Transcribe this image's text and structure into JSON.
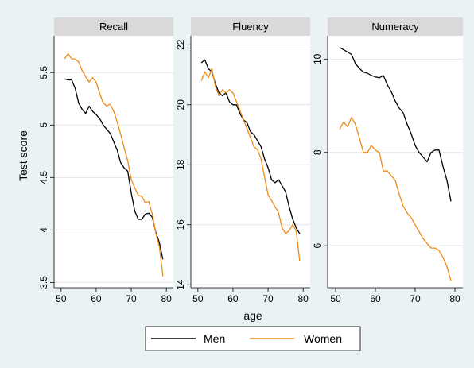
{
  "chart_data": {
    "type": "line",
    "ylabel": "Test score",
    "xlabel": "age",
    "legend": {
      "position": "bottom",
      "entries": [
        "Men",
        "Women"
      ]
    },
    "colors": {
      "Men": "#000000",
      "Women": "#ef8a17",
      "strip": "#d9d9d9",
      "plot_bg": "#ffffff",
      "page_bg": "#eaf2f3",
      "grid": "#e4e4e4"
    },
    "grid": true,
    "x": [
      51,
      52,
      53,
      54,
      55,
      56,
      57,
      58,
      59,
      60,
      61,
      62,
      63,
      64,
      65,
      66,
      67,
      68,
      69,
      70,
      71,
      72,
      73,
      74,
      75,
      76,
      77,
      78,
      79
    ],
    "panels": [
      {
        "title": "Recall",
        "xlim": [
          48,
          82
        ],
        "ylim": [
          3.45,
          5.85
        ],
        "xticks": [
          "50",
          "60",
          "70",
          "80"
        ],
        "yticks": [
          "3.5",
          "4",
          "4.5",
          "5",
          "5.5"
        ],
        "series": [
          {
            "name": "Men",
            "values": [
              5.44,
              5.43,
              5.43,
              5.35,
              5.21,
              5.15,
              5.11,
              5.18,
              5.13,
              5.1,
              5.06,
              5.0,
              4.96,
              4.92,
              4.84,
              4.76,
              4.64,
              4.59,
              4.56,
              4.35,
              4.18,
              4.1,
              4.1,
              4.15,
              4.16,
              4.12,
              3.98,
              3.88,
              3.72
            ]
          },
          {
            "name": "Women",
            "values": [
              5.63,
              5.68,
              5.63,
              5.63,
              5.6,
              5.52,
              5.46,
              5.41,
              5.45,
              5.41,
              5.3,
              5.21,
              5.18,
              5.2,
              5.13,
              5.03,
              4.91,
              4.78,
              4.66,
              4.48,
              4.4,
              4.33,
              4.32,
              4.26,
              4.27,
              4.15,
              3.97,
              3.84,
              3.56
            ]
          }
        ]
      },
      {
        "title": "Fluency",
        "xlim": [
          48,
          82
        ],
        "ylim": [
          13.9,
          22.3
        ],
        "xticks": [
          "50",
          "60",
          "70",
          "80"
        ],
        "yticks": [
          "14",
          "16",
          "18",
          "20",
          "22"
        ],
        "series": [
          {
            "name": "Men",
            "values": [
              21.4,
              21.5,
              21.2,
              21.1,
              20.7,
              20.4,
              20.3,
              20.4,
              20.1,
              20.0,
              20.0,
              19.7,
              19.5,
              19.4,
              19.1,
              19.0,
              18.8,
              18.6,
              18.2,
              17.9,
              17.5,
              17.4,
              17.5,
              17.3,
              17.1,
              16.6,
              16.2,
              15.9,
              15.7
            ]
          },
          {
            "name": "Women",
            "values": [
              20.8,
              21.1,
              20.9,
              21.2,
              20.6,
              20.3,
              20.5,
              20.4,
              20.5,
              20.4,
              20.1,
              19.8,
              19.5,
              19.2,
              18.9,
              18.6,
              18.5,
              18.2,
              17.6,
              17.0,
              16.8,
              16.6,
              16.4,
              15.9,
              15.7,
              15.8,
              16.0,
              15.8,
              14.8
            ]
          }
        ]
      },
      {
        "title": "Numeracy",
        "xlim": [
          48,
          82
        ],
        "ylim": [
          5.1,
          10.5
        ],
        "xticks": [
          "50",
          "60",
          "70",
          "80"
        ],
        "yticks": [
          "6",
          "8",
          "10"
        ],
        "series": [
          {
            "name": "Men",
            "values": [
              10.25,
              10.2,
              10.15,
              10.1,
              9.9,
              9.8,
              9.72,
              9.7,
              9.65,
              9.62,
              9.6,
              9.65,
              9.45,
              9.3,
              9.1,
              8.95,
              8.85,
              8.6,
              8.4,
              8.15,
              8.0,
              7.9,
              7.8,
              8.0,
              8.05,
              8.05,
              7.7,
              7.4,
              6.95
            ]
          },
          {
            "name": "Women",
            "values": [
              8.5,
              8.65,
              8.55,
              8.75,
              8.6,
              8.3,
              8.0,
              8.0,
              8.15,
              8.05,
              8.0,
              7.6,
              7.6,
              7.5,
              7.4,
              7.1,
              6.85,
              6.7,
              6.6,
              6.45,
              6.3,
              6.15,
              6.05,
              5.95,
              5.95,
              5.9,
              5.75,
              5.55,
              5.25
            ]
          }
        ]
      }
    ]
  }
}
